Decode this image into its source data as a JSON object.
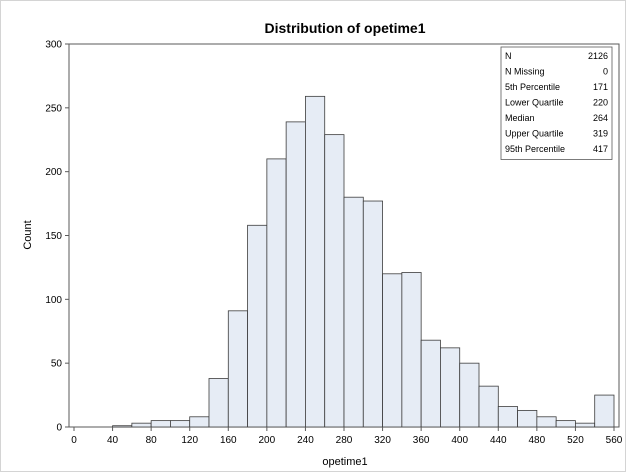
{
  "chart_data": {
    "type": "bar",
    "title": "Distribution of opetime1",
    "xlabel": "opetime1",
    "ylabel": "Count",
    "xlim": [
      0,
      560
    ],
    "ylim": [
      0,
      300
    ],
    "bin_width": 20,
    "x_ticks": [
      "0",
      "40",
      "80",
      "120",
      "160",
      "200",
      "240",
      "280",
      "320",
      "360",
      "400",
      "440",
      "480",
      "520",
      "560"
    ],
    "y_ticks": [
      "0",
      "50",
      "100",
      "150",
      "200",
      "250",
      "300"
    ],
    "bins": [
      {
        "x0": 0,
        "x1": 20,
        "count": 0
      },
      {
        "x0": 20,
        "x1": 40,
        "count": 0
      },
      {
        "x0": 40,
        "x1": 60,
        "count": 1
      },
      {
        "x0": 60,
        "x1": 80,
        "count": 3
      },
      {
        "x0": 80,
        "x1": 100,
        "count": 5
      },
      {
        "x0": 100,
        "x1": 120,
        "count": 5
      },
      {
        "x0": 120,
        "x1": 140,
        "count": 8
      },
      {
        "x0": 140,
        "x1": 160,
        "count": 38
      },
      {
        "x0": 160,
        "x1": 180,
        "count": 91
      },
      {
        "x0": 180,
        "x1": 200,
        "count": 158
      },
      {
        "x0": 200,
        "x1": 220,
        "count": 210
      },
      {
        "x0": 220,
        "x1": 240,
        "count": 239
      },
      {
        "x0": 240,
        "x1": 260,
        "count": 259
      },
      {
        "x0": 260,
        "x1": 280,
        "count": 229
      },
      {
        "x0": 280,
        "x1": 300,
        "count": 180
      },
      {
        "x0": 300,
        "x1": 320,
        "count": 177
      },
      {
        "x0": 320,
        "x1": 340,
        "count": 120
      },
      {
        "x0": 340,
        "x1": 360,
        "count": 121
      },
      {
        "x0": 360,
        "x1": 380,
        "count": 68
      },
      {
        "x0": 380,
        "x1": 400,
        "count": 62
      },
      {
        "x0": 400,
        "x1": 420,
        "count": 50
      },
      {
        "x0": 420,
        "x1": 440,
        "count": 32
      },
      {
        "x0": 440,
        "x1": 460,
        "count": 16
      },
      {
        "x0": 460,
        "x1": 480,
        "count": 13
      },
      {
        "x0": 480,
        "x1": 500,
        "count": 8
      },
      {
        "x0": 500,
        "x1": 520,
        "count": 5
      },
      {
        "x0": 520,
        "x1": 540,
        "count": 3
      },
      {
        "x0": 540,
        "x1": 560,
        "count": 25
      }
    ],
    "bar_fill": "#e6ecf5",
    "bar_stroke": "#3c3c3c",
    "grid": false,
    "stats_box_position": "top-right",
    "stats": [
      {
        "label": "N",
        "value": "2126"
      },
      {
        "label": "N Missing",
        "value": "0"
      },
      {
        "label": "5th Percentile",
        "value": "171"
      },
      {
        "label": "Lower Quartile",
        "value": "220"
      },
      {
        "label": "Median",
        "value": "264"
      },
      {
        "label": "Upper Quartile",
        "value": "319"
      },
      {
        "label": "95th Percentile",
        "value": "417"
      }
    ]
  }
}
